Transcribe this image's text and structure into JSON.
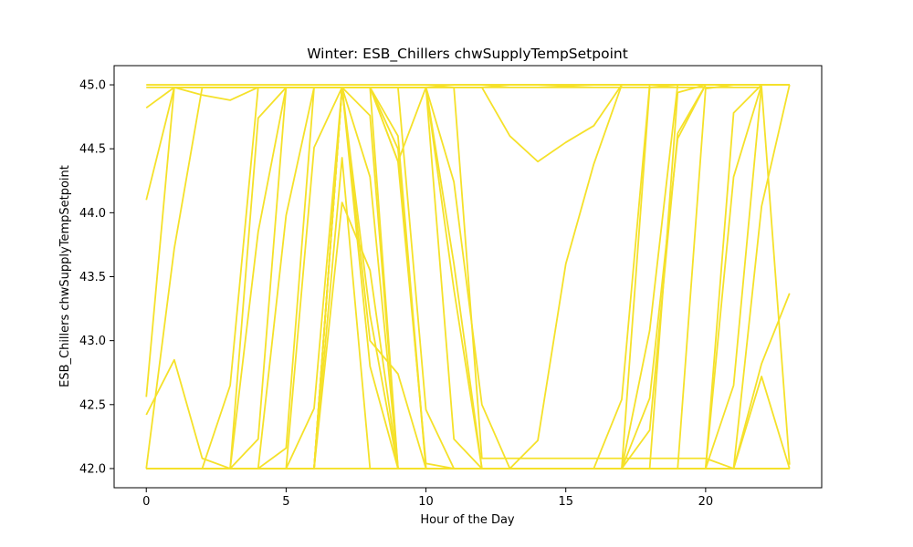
{
  "chart_data": {
    "type": "line",
    "title": "Winter: ESB_Chillers chwSupplyTempSetpoint",
    "xlabel": "Hour of the Day",
    "ylabel": "ESB_Chillers chwSupplyTempSetpoint",
    "xlim": [
      -1.15,
      24.15
    ],
    "ylim": [
      41.85,
      45.15
    ],
    "x_ticks": [
      0,
      5,
      10,
      15,
      20
    ],
    "y_ticks": [
      42.0,
      42.5,
      43.0,
      43.5,
      44.0,
      44.5,
      45.0
    ],
    "x_tick_labels": [
      "0",
      "5",
      "10",
      "15",
      "20"
    ],
    "y_tick_labels": [
      "42.0",
      "42.5",
      "43.0",
      "43.5",
      "44.0",
      "44.5",
      "45.0"
    ],
    "grid": false,
    "legend": "none",
    "line_color": "#f5e12a",
    "x": [
      0,
      1,
      2,
      3,
      4,
      5,
      6,
      7,
      8,
      9,
      10,
      11,
      12,
      13,
      14,
      15,
      16,
      17,
      18,
      19,
      20,
      21,
      22,
      23
    ],
    "series": [
      {
        "values": [
          45.0,
          45.0,
          45.0,
          45.0,
          45.0,
          45.0,
          45.0,
          45.0,
          45.0,
          45.0,
          45.0,
          45.0,
          45.0,
          45.0,
          45.0,
          44.99,
          45.0,
          45.0,
          45.0,
          45.0,
          45.0,
          45.0,
          45.0,
          45.0
        ]
      },
      {
        "values": [
          44.98,
          44.98,
          44.98,
          44.98,
          44.98,
          44.98,
          44.98,
          44.98,
          44.98,
          44.98,
          44.98,
          45.0,
          45.0,
          45.0,
          45.0,
          45.0,
          45.0,
          45.0,
          45.0,
          45.0,
          45.0,
          45.0,
          45.0,
          45.0
        ]
      },
      {
        "values": [
          44.82,
          44.98,
          44.92,
          44.88,
          44.98,
          44.98,
          44.98,
          44.98,
          44.98,
          42.0,
          42.0,
          42.0,
          42.0,
          42.0,
          42.0,
          42.0,
          42.0,
          42.0,
          44.98,
          45.0,
          45.0,
          45.0,
          45.0,
          45.0
        ]
      },
      {
        "values": [
          44.1,
          44.98,
          44.98,
          44.98,
          44.98,
          44.98,
          44.98,
          44.98,
          44.76,
          42.0,
          42.0,
          42.0,
          42.0,
          42.0,
          42.0,
          42.0,
          42.0,
          42.0,
          42.0,
          44.94,
          45.0,
          45.0,
          45.0,
          45.0
        ]
      },
      {
        "values": [
          42.56,
          44.98,
          44.98,
          44.98,
          44.98,
          44.98,
          44.98,
          44.98,
          44.98,
          44.6,
          42.0,
          42.0,
          42.0,
          42.0,
          42.0,
          42.0,
          42.0,
          42.0,
          42.0,
          42.0,
          44.97,
          45.0,
          45.0,
          45.0
        ]
      },
      {
        "values": [
          42.42,
          42.85,
          42.08,
          42.0,
          42.0,
          42.0,
          42.0,
          44.98,
          44.98,
          44.98,
          42.46,
          42.0,
          42.0,
          42.0,
          42.0,
          42.0,
          42.0,
          42.0,
          42.0,
          42.0,
          42.0,
          44.78,
          45.0,
          45.0
        ]
      },
      {
        "values": [
          42.0,
          43.72,
          44.98,
          44.98,
          44.98,
          44.98,
          44.98,
          44.98,
          44.98,
          44.98,
          44.98,
          42.23,
          42.0,
          42.0,
          42.0,
          42.0,
          42.0,
          42.0,
          42.0,
          42.0,
          42.0,
          42.0,
          42.72,
          42.0
        ]
      },
      {
        "values": [
          42.0,
          42.0,
          42.0,
          42.65,
          44.98,
          44.98,
          44.98,
          44.98,
          43.2,
          42.0,
          42.0,
          42.0,
          42.0,
          42.0,
          42.22,
          43.6,
          44.38,
          45.0,
          45.0,
          45.0,
          45.0,
          45.0,
          45.0,
          45.0
        ]
      },
      {
        "values": [
          42.0,
          42.0,
          42.0,
          42.0,
          44.74,
          44.98,
          44.98,
          44.98,
          44.98,
          44.98,
          44.98,
          44.24,
          42.5,
          42.0,
          42.0,
          42.0,
          42.0,
          42.0,
          42.0,
          42.0,
          42.0,
          42.0,
          42.82,
          43.37
        ]
      },
      {
        "values": [
          42.0,
          42.0,
          42.0,
          42.0,
          42.23,
          44.98,
          44.98,
          44.98,
          44.98,
          44.98,
          44.98,
          44.98,
          44.98,
          44.6,
          44.4,
          44.55,
          44.68,
          45.0,
          45.0,
          45.0,
          45.0,
          45.0,
          45.0,
          45.0
        ]
      },
      {
        "values": [
          42.0,
          42.0,
          42.0,
          42.0,
          42.0,
          42.16,
          44.98,
          44.98,
          44.98,
          44.98,
          44.98,
          43.6,
          42.0,
          42.0,
          42.0,
          42.0,
          42.0,
          42.0,
          42.0,
          42.0,
          42.0,
          42.0,
          42.0,
          42.0
        ]
      },
      {
        "values": [
          42.0,
          42.0,
          42.0,
          42.0,
          43.85,
          44.98,
          44.98,
          44.98,
          44.98,
          44.4,
          42.04,
          42.0,
          42.0,
          42.0,
          42.0,
          42.0,
          42.0,
          42.0,
          42.3,
          44.62,
          45.0,
          45.0,
          45.0,
          45.0
        ]
      },
      {
        "values": [
          42.0,
          42.0,
          42.0,
          42.0,
          42.0,
          43.98,
          44.98,
          44.98,
          44.98,
          44.98,
          44.98,
          44.98,
          42.08,
          42.08,
          42.08,
          42.08,
          42.08,
          42.08,
          42.08,
          42.08,
          42.08,
          42.0,
          42.0,
          42.0
        ]
      },
      {
        "values": [
          42.0,
          42.0,
          42.0,
          42.0,
          42.0,
          42.0,
          42.47,
          44.98,
          44.98,
          44.98,
          44.98,
          44.98,
          44.98,
          45.0,
          45.0,
          45.0,
          45.0,
          45.0,
          45.0,
          45.0,
          45.0,
          45.0,
          45.0,
          45.0
        ]
      },
      {
        "values": [
          42.0,
          42.0,
          42.0,
          42.0,
          42.0,
          42.0,
          44.51,
          44.98,
          44.98,
          44.98,
          44.98,
          44.98,
          44.98,
          44.98,
          44.98,
          44.98,
          44.98,
          44.98,
          44.98,
          44.98,
          44.98,
          44.98,
          44.98,
          42.03
        ]
      },
      {
        "values": [
          42.0,
          42.0,
          42.0,
          42.0,
          42.0,
          42.0,
          42.0,
          44.08,
          43.55,
          42.0,
          42.0,
          42.0,
          42.0,
          42.0,
          42.0,
          42.0,
          42.0,
          42.0,
          42.0,
          42.0,
          42.0,
          42.0,
          42.0,
          42.0
        ]
      },
      {
        "values": [
          42.0,
          42.0,
          42.0,
          42.0,
          42.0,
          42.0,
          42.0,
          44.98,
          44.98,
          44.4,
          44.98,
          43.4,
          42.0,
          42.0,
          42.0,
          42.0,
          42.0,
          42.54,
          45.0,
          45.0,
          45.0,
          45.0,
          45.0,
          45.0
        ]
      },
      {
        "values": [
          42.0,
          42.0,
          42.0,
          42.0,
          42.0,
          42.0,
          42.0,
          44.98,
          42.8,
          42.0,
          42.0,
          42.0,
          42.0,
          42.0,
          42.0,
          42.0,
          42.0,
          42.0,
          42.0,
          42.0,
          42.0,
          42.0,
          44.05,
          45.0
        ]
      },
      {
        "values": [
          42.0,
          42.0,
          42.0,
          42.0,
          42.0,
          42.0,
          42.0,
          44.98,
          44.28,
          42.0,
          42.0,
          42.0,
          42.0,
          42.0,
          42.0,
          42.0,
          42.0,
          42.0,
          42.0,
          42.0,
          42.0,
          42.65,
          45.0,
          45.0
        ]
      },
      {
        "values": [
          42.0,
          42.0,
          42.0,
          42.0,
          42.0,
          42.0,
          42.0,
          44.98,
          43.0,
          42.74,
          42.0,
          42.0,
          42.0,
          42.0,
          42.0,
          42.0,
          42.0,
          42.0,
          42.0,
          42.0,
          42.0,
          44.28,
          45.0,
          45.0
        ]
      },
      {
        "values": [
          42.0,
          42.0,
          42.0,
          42.0,
          42.0,
          42.0,
          42.0,
          44.43,
          42.0,
          42.0,
          42.0,
          42.0,
          42.0,
          42.0,
          42.0,
          42.0,
          42.0,
          42.0,
          43.08,
          45.0,
          45.0,
          45.0,
          45.0,
          45.0
        ]
      },
      {
        "values": [
          42.0,
          42.0,
          42.0,
          42.0,
          42.0,
          42.0,
          42.0,
          44.98,
          44.98,
          44.5,
          42.0,
          42.0,
          42.0,
          42.0,
          42.0,
          42.0,
          42.0,
          42.0,
          42.55,
          44.58,
          45.0,
          45.0,
          45.0,
          45.0
        ]
      },
      {
        "values": [
          42.0,
          42.0,
          42.0,
          42.0,
          42.0,
          42.0,
          42.0,
          42.0,
          42.0,
          42.0,
          42.0,
          42.0,
          42.0,
          42.0,
          42.0,
          42.0,
          42.0,
          42.0,
          42.0,
          42.0,
          42.0,
          42.0,
          42.0,
          42.0
        ]
      }
    ]
  }
}
